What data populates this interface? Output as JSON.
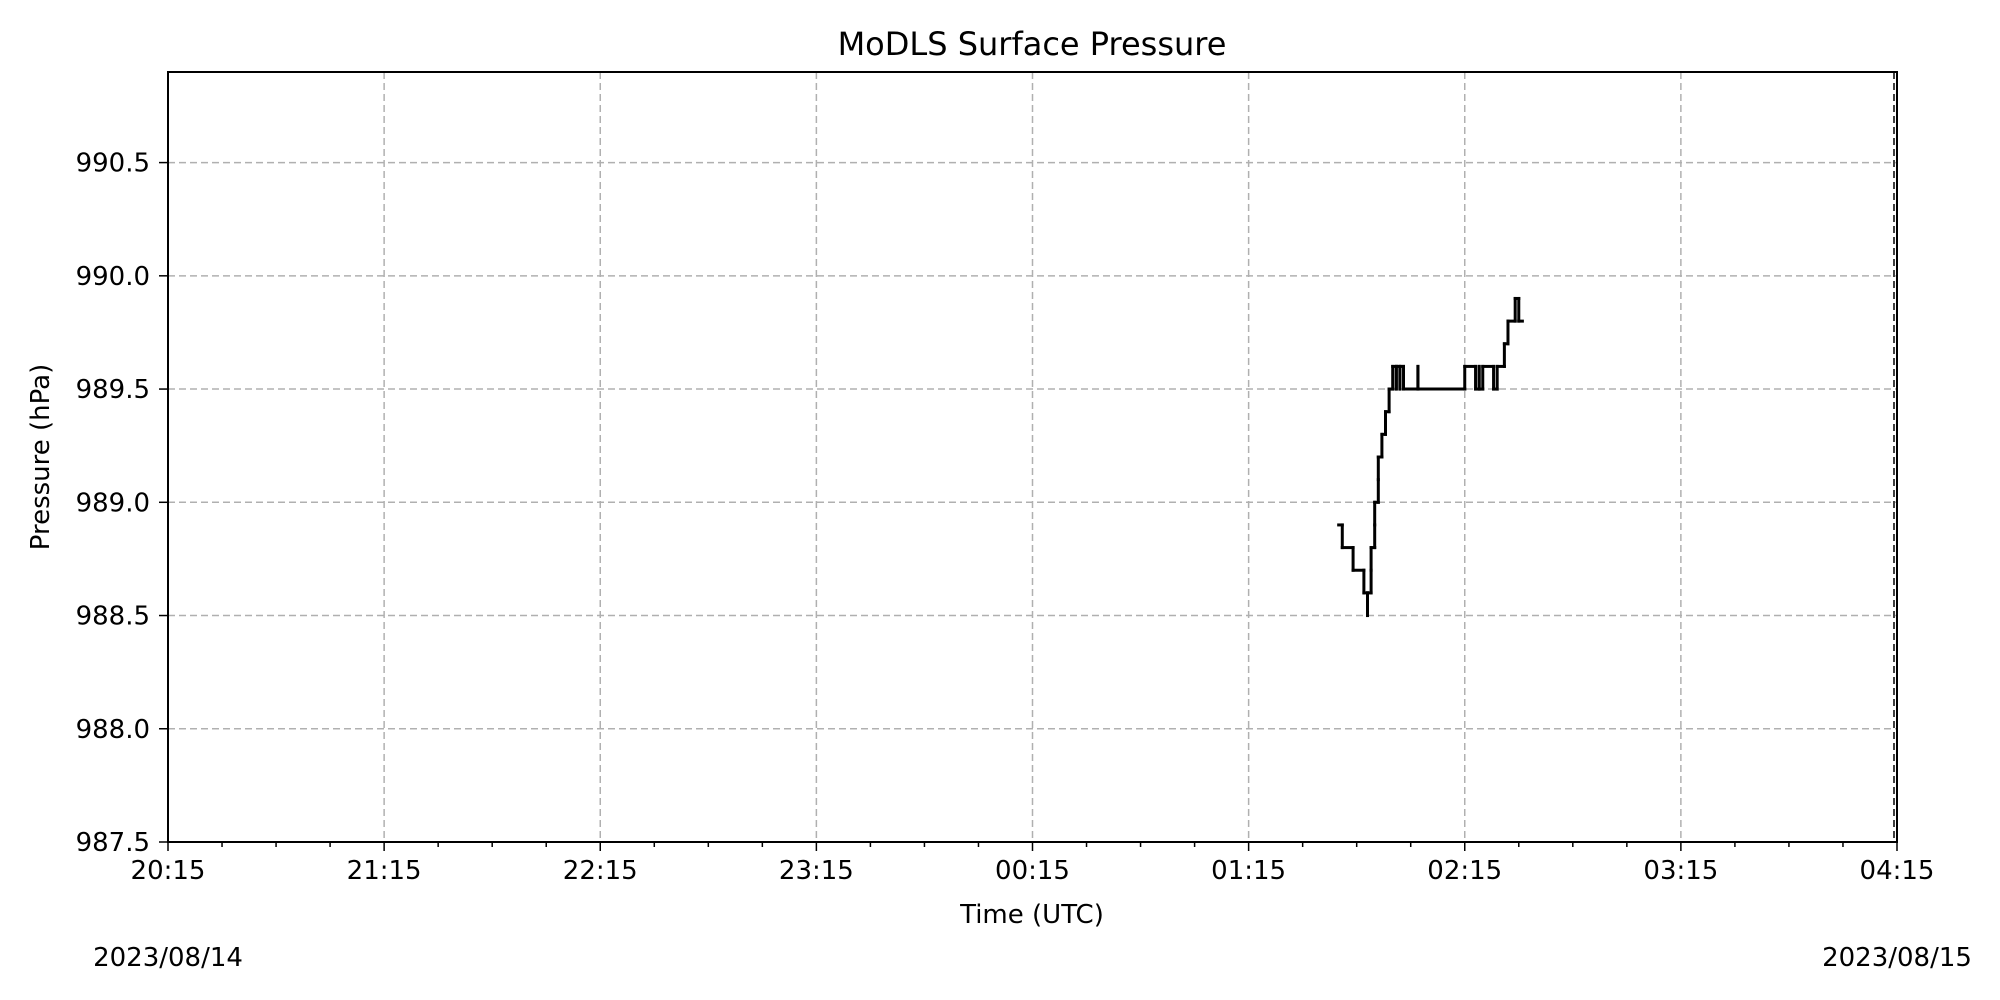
{
  "chart_data": {
    "type": "line",
    "title": "MoDLS Surface Pressure",
    "xlabel": "Time (UTC)",
    "ylabel": "Pressure (hPa)",
    "x_tick_labels": [
      "20:15",
      "21:15",
      "22:15",
      "23:15",
      "00:15",
      "01:15",
      "02:15",
      "03:15",
      "04:15"
    ],
    "y_tick_labels": [
      "987.5",
      "988.0",
      "988.5",
      "989.0",
      "989.5",
      "990.0",
      "990.5"
    ],
    "y_ticks": [
      987.5,
      988.0,
      988.5,
      989.0,
      989.5,
      990.0,
      990.5
    ],
    "xlim": [
      "2023-08-14 20:15",
      "2023-08-15 04:15"
    ],
    "ylim": [
      987.5,
      990.9
    ],
    "date_labels": {
      "start": "2023/08/14",
      "end": "2023/08/15"
    },
    "grid": true,
    "series": [
      {
        "color": "#000000",
        "style": "step",
        "points": [
          [
            "2023-08-15 01:40",
            988.9
          ],
          [
            "2023-08-15 01:41",
            988.8
          ],
          [
            "2023-08-15 01:44",
            988.7
          ],
          [
            "2023-08-15 01:47",
            988.6
          ],
          [
            "2023-08-15 01:48",
            988.5
          ],
          [
            "2023-08-15 01:48",
            988.6
          ],
          [
            "2023-08-15 01:49",
            988.7
          ],
          [
            "2023-08-15 01:49",
            988.8
          ],
          [
            "2023-08-15 01:50",
            988.9
          ],
          [
            "2023-08-15 01:50",
            989.0
          ],
          [
            "2023-08-15 01:51",
            989.1
          ],
          [
            "2023-08-15 01:51",
            989.2
          ],
          [
            "2023-08-15 01:52",
            989.3
          ],
          [
            "2023-08-15 01:53",
            989.4
          ],
          [
            "2023-08-15 01:54",
            989.5
          ],
          [
            "2023-08-15 01:55",
            989.6
          ],
          [
            "2023-08-15 01:56",
            989.5
          ],
          [
            "2023-08-15 01:56",
            989.6
          ],
          [
            "2023-08-15 01:57",
            989.5
          ],
          [
            "2023-08-15 01:57",
            989.6
          ],
          [
            "2023-08-15 01:58",
            989.5
          ],
          [
            "2023-08-15 02:02",
            989.6
          ],
          [
            "2023-08-15 02:02",
            989.5
          ],
          [
            "2023-08-15 02:15",
            989.6
          ],
          [
            "2023-08-15 02:18",
            989.5
          ],
          [
            "2023-08-15 02:19",
            989.6
          ],
          [
            "2023-08-15 02:19",
            989.5
          ],
          [
            "2023-08-15 02:20",
            989.6
          ],
          [
            "2023-08-15 02:23",
            989.5
          ],
          [
            "2023-08-15 02:24",
            989.6
          ],
          [
            "2023-08-15 02:26",
            989.7
          ],
          [
            "2023-08-15 02:27",
            989.8
          ],
          [
            "2023-08-15 02:29",
            989.9
          ],
          [
            "2023-08-15 02:30",
            989.8
          ],
          [
            "2023-08-15 02:31",
            989.8
          ]
        ]
      }
    ]
  }
}
